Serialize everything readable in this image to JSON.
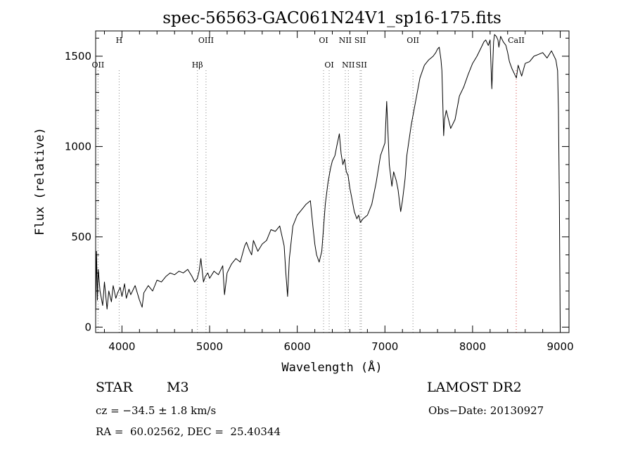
{
  "chart_data": {
    "type": "line",
    "title": "spec-56563-GAC061N24V1_sp16-175.fits",
    "xlabel": "Wavelength (Å)",
    "ylabel": "Flux (relative)",
    "xlim": [
      3700,
      9100
    ],
    "ylim": [
      -30,
      1640
    ],
    "xticks": [
      4000,
      5000,
      6000,
      7000,
      8000,
      9000
    ],
    "yticks": [
      0,
      500,
      1000,
      1500
    ],
    "xtick_labels": [
      "4000",
      "5000",
      "6000",
      "7000",
      "8000",
      "9000"
    ],
    "ytick_labels": [
      "0",
      "500",
      "1000",
      "1500"
    ],
    "series": [
      {
        "x": [
          3700,
          3710,
          3720,
          3730,
          3750,
          3780,
          3800,
          3830,
          3850,
          3880,
          3900,
          3930,
          3950,
          3980,
          4000,
          4030,
          4050,
          4080,
          4100,
          4150,
          4200,
          4230,
          4250,
          4300,
          4350,
          4400,
          4450,
          4500,
          4550,
          4600,
          4650,
          4700,
          4750,
          4800,
          4830,
          4860,
          4880,
          4900,
          4930,
          4950,
          4980,
          5000,
          5050,
          5100,
          5150,
          5170,
          5200,
          5250,
          5300,
          5350,
          5400,
          5420,
          5450,
          5480,
          5500,
          5550,
          5600,
          5650,
          5700,
          5750,
          5800,
          5850,
          5870,
          5890,
          5910,
          5950,
          6000,
          6050,
          6100,
          6150,
          6180,
          6200,
          6220,
          6250,
          6280,
          6300,
          6320,
          6350,
          6380,
          6400,
          6430,
          6450,
          6480,
          6500,
          6520,
          6540,
          6560,
          6580,
          6600,
          6620,
          6650,
          6680,
          6700,
          6720,
          6750,
          6800,
          6850,
          6900,
          6950,
          7000,
          7020,
          7050,
          7080,
          7100,
          7130,
          7150,
          7180,
          7200,
          7230,
          7250,
          7300,
          7350,
          7400,
          7450,
          7500,
          7550,
          7580,
          7600,
          7620,
          7640,
          7650,
          7660,
          7670,
          7680,
          7700,
          7750,
          7800,
          7850,
          7900,
          7950,
          8000,
          8050,
          8100,
          8130,
          8150,
          8180,
          8200,
          8220,
          8240,
          8250,
          8270,
          8290,
          8300,
          8320,
          8350,
          8380,
          8400,
          8420,
          8450,
          8480,
          8500,
          8520,
          8540,
          8560,
          8600,
          8650,
          8700,
          8750,
          8800,
          8850,
          8900,
          8950,
          8970,
          8980,
          8990,
          9000
        ],
        "y": [
          80,
          420,
          150,
          320,
          200,
          120,
          250,
          100,
          200,
          140,
          230,
          160,
          190,
          220,
          170,
          240,
          160,
          210,
          180,
          230,
          150,
          110,
          190,
          230,
          200,
          260,
          250,
          280,
          300,
          290,
          310,
          300,
          320,
          280,
          250,
          270,
          310,
          380,
          250,
          280,
          300,
          270,
          310,
          290,
          340,
          180,
          300,
          350,
          380,
          360,
          450,
          470,
          430,
          400,
          480,
          420,
          460,
          480,
          540,
          530,
          560,
          450,
          300,
          170,
          380,
          560,
          620,
          650,
          680,
          700,
          550,
          460,
          400,
          360,
          420,
          550,
          680,
          800,
          880,
          920,
          950,
          1000,
          1070,
          960,
          900,
          930,
          860,
          840,
          770,
          720,
          640,
          600,
          620,
          580,
          600,
          620,
          680,
          800,
          950,
          1020,
          1250,
          900,
          780,
          860,
          810,
          760,
          640,
          700,
          820,
          950,
          1120,
          1250,
          1380,
          1450,
          1480,
          1500,
          1520,
          1540,
          1550,
          1480,
          1420,
          1250,
          1060,
          1150,
          1200,
          1100,
          1150,
          1280,
          1330,
          1400,
          1460,
          1500,
          1550,
          1580,
          1590,
          1560,
          1590,
          1320,
          1580,
          1620,
          1610,
          1590,
          1550,
          1610,
          1580,
          1560,
          1520,
          1470,
          1430,
          1400,
          1380,
          1450,
          1420,
          1390,
          1460,
          1470,
          1500,
          1510,
          1520,
          1490,
          1530,
          1480,
          1420,
          1200,
          700,
          0
        ]
      }
    ],
    "line_markers": [
      {
        "label": "OII",
        "x": 3727,
        "row": 1
      },
      {
        "label": "H",
        "x": 3968,
        "row": 0
      },
      {
        "label": "Hβ",
        "x": 4861,
        "row": 1
      },
      {
        "label": "OIII",
        "x": 4959,
        "row": 0
      },
      {
        "label": "OI",
        "x": 6300,
        "row": 0
      },
      {
        "label": "OI",
        "x": 6364,
        "row": 1
      },
      {
        "label": "NII",
        "x": 6548,
        "row": 0
      },
      {
        "label": "NII",
        "x": 6583,
        "row": 1
      },
      {
        "label": "SII",
        "x": 6717,
        "row": 0
      },
      {
        "label": "SII",
        "x": 6731,
        "row": 1
      },
      {
        "label": "OII",
        "x": 7320,
        "row": 0
      },
      {
        "label": "CaII",
        "x": 8498,
        "row": 0
      }
    ],
    "grid": false,
    "legend": "none"
  },
  "info": {
    "object_class": "STAR",
    "subclass": "M3",
    "survey": "LAMOST DR2",
    "cz": "cz = −34.5 ± 1.8 km/s",
    "obs_date": "Obs−Date: 20130927",
    "radec": "RA =  60.02562, DEC =  25.40344"
  }
}
